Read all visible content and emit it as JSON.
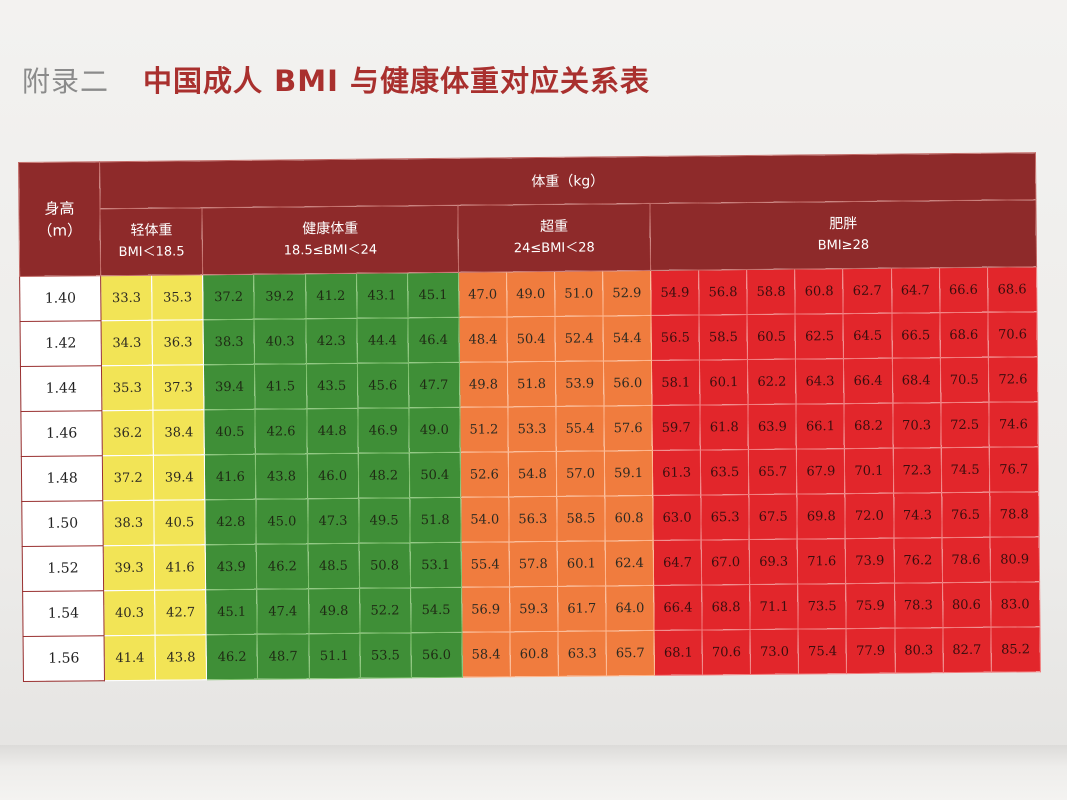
{
  "heading": {
    "appendix": "附录二",
    "title": "中国成人 BMI 与健康体重对应关系表"
  },
  "table": {
    "height_header": [
      "身高",
      "（m）"
    ],
    "weight_header": "体重（kg）",
    "categories": [
      {
        "name": "轻体重",
        "range": "BMI＜18.5",
        "color": "#f2e456"
      },
      {
        "name": "健康体重",
        "range": "18.5≤BMI＜24",
        "color": "#3f8f37"
      },
      {
        "name": "超重",
        "range": "24≤BMI＜28",
        "color": "#f07c3e"
      },
      {
        "name": "肥胖",
        "range": "BMI≥28",
        "color": "#e2262b"
      }
    ],
    "rows": [
      {
        "height": "1.40",
        "uw": [
          "33.3",
          "35.3"
        ],
        "hw": [
          "37.2",
          "39.2",
          "41.2",
          "43.1",
          "45.1"
        ],
        "ow": [
          "47.0",
          "49.0",
          "51.0",
          "52.9"
        ],
        "ob": [
          "54.9",
          "56.8",
          "58.8",
          "60.8",
          "62.7",
          "64.7",
          "66.6",
          "68.6"
        ]
      },
      {
        "height": "1.42",
        "uw": [
          "34.3",
          "36.3"
        ],
        "hw": [
          "38.3",
          "40.3",
          "42.3",
          "44.4",
          "46.4"
        ],
        "ow": [
          "48.4",
          "50.4",
          "52.4",
          "54.4"
        ],
        "ob": [
          "56.5",
          "58.5",
          "60.5",
          "62.5",
          "64.5",
          "66.5",
          "68.6",
          "70.6"
        ]
      },
      {
        "height": "1.44",
        "uw": [
          "35.3",
          "37.3"
        ],
        "hw": [
          "39.4",
          "41.5",
          "43.5",
          "45.6",
          "47.7"
        ],
        "ow": [
          "49.8",
          "51.8",
          "53.9",
          "56.0"
        ],
        "ob": [
          "58.1",
          "60.1",
          "62.2",
          "64.3",
          "66.4",
          "68.4",
          "70.5",
          "72.6"
        ]
      },
      {
        "height": "1.46",
        "uw": [
          "36.2",
          "38.4"
        ],
        "hw": [
          "40.5",
          "42.6",
          "44.8",
          "46.9",
          "49.0"
        ],
        "ow": [
          "51.2",
          "53.3",
          "55.4",
          "57.6"
        ],
        "ob": [
          "59.7",
          "61.8",
          "63.9",
          "66.1",
          "68.2",
          "70.3",
          "72.5",
          "74.6"
        ]
      },
      {
        "height": "1.48",
        "uw": [
          "37.2",
          "39.4"
        ],
        "hw": [
          "41.6",
          "43.8",
          "46.0",
          "48.2",
          "50.4"
        ],
        "ow": [
          "52.6",
          "54.8",
          "57.0",
          "59.1"
        ],
        "ob": [
          "61.3",
          "63.5",
          "65.7",
          "67.9",
          "70.1",
          "72.3",
          "74.5",
          "76.7"
        ]
      },
      {
        "height": "1.50",
        "uw": [
          "38.3",
          "40.5"
        ],
        "hw": [
          "42.8",
          "45.0",
          "47.3",
          "49.5",
          "51.8"
        ],
        "ow": [
          "54.0",
          "56.3",
          "58.5",
          "60.8"
        ],
        "ob": [
          "63.0",
          "65.3",
          "67.5",
          "69.8",
          "72.0",
          "74.3",
          "76.5",
          "78.8"
        ]
      },
      {
        "height": "1.52",
        "uw": [
          "39.3",
          "41.6"
        ],
        "hw": [
          "43.9",
          "46.2",
          "48.5",
          "50.8",
          "53.1"
        ],
        "ow": [
          "55.4",
          "57.8",
          "60.1",
          "62.4"
        ],
        "ob": [
          "64.7",
          "67.0",
          "69.3",
          "71.6",
          "73.9",
          "76.2",
          "78.6",
          "80.9"
        ]
      },
      {
        "height": "1.54",
        "uw": [
          "40.3",
          "42.7"
        ],
        "hw": [
          "45.1",
          "47.4",
          "49.8",
          "52.2",
          "54.5"
        ],
        "ow": [
          "56.9",
          "59.3",
          "61.7",
          "64.0"
        ],
        "ob": [
          "66.4",
          "68.8",
          "71.1",
          "73.5",
          "75.9",
          "78.3",
          "80.6",
          "83.0"
        ]
      },
      {
        "height": "1.56",
        "uw": [
          "41.4",
          "43.8"
        ],
        "hw": [
          "46.2",
          "48.7",
          "51.1",
          "53.5",
          "56.0"
        ],
        "ow": [
          "58.4",
          "60.8",
          "63.3",
          "65.7"
        ],
        "ob": [
          "68.1",
          "70.6",
          "73.0",
          "75.4",
          "77.9",
          "80.3",
          "82.7",
          "85.2"
        ]
      }
    ]
  }
}
